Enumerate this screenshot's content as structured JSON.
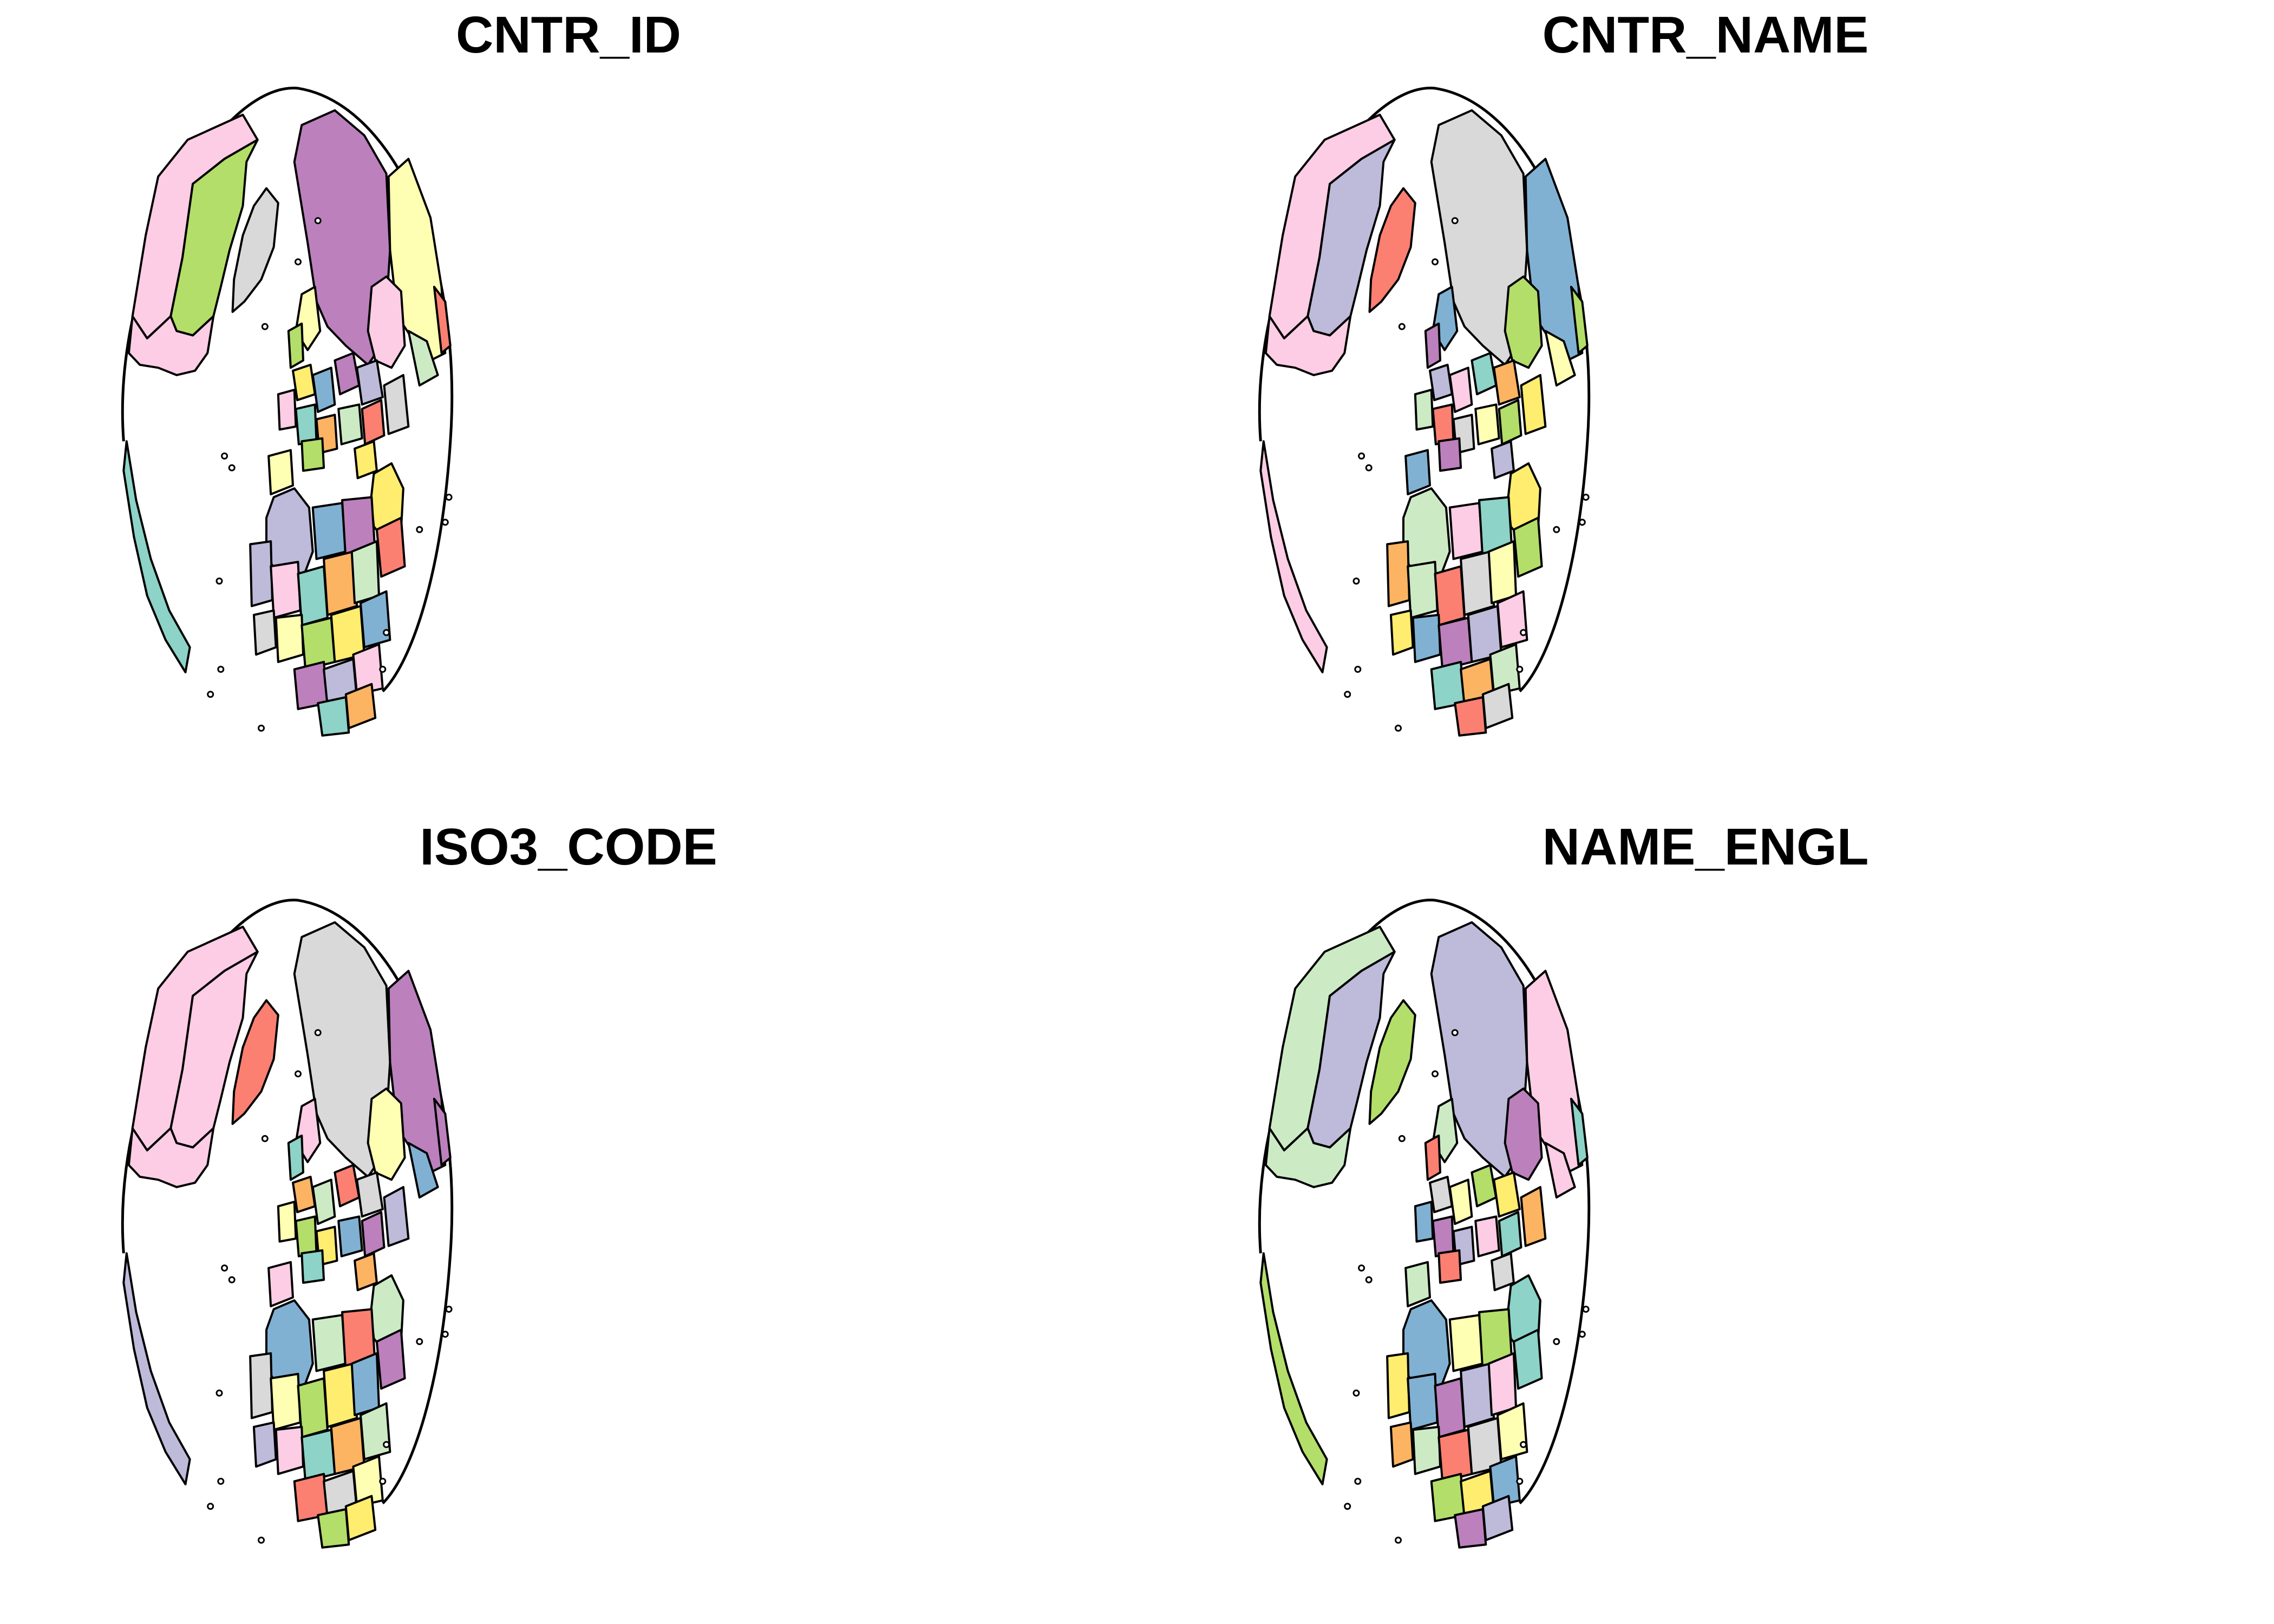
{
  "figure": {
    "panels": [
      {
        "title": "CNTR_ID"
      },
      {
        "title": "CNTR_NAME"
      },
      {
        "title": "ISO3_CODE"
      },
      {
        "title": "NAME_ENGL"
      }
    ]
  },
  "palette": [
    "#8dd3c7",
    "#ffffb3",
    "#bebada",
    "#fb8072",
    "#80b1d3",
    "#fdb462",
    "#b3de69",
    "#fccde5",
    "#d9d9d9",
    "#bc80bd",
    "#ccebc5",
    "#ffed6f"
  ],
  "outline_color": "#000000",
  "region_colors": [
    {
      "canada": "#b3de69",
      "usa": "#fccde5",
      "alaska": "#fccde5",
      "russia": "#bc80bd",
      "greenland": "#d9d9d9",
      "latin_america": "#8dd3c7",
      "north_africa": "#bebada",
      "arabia": "#ffed6f",
      "east_asia": "#ffffb3",
      "central_asia": "#fccde5"
    },
    {
      "canada": "#bebada",
      "usa": "#fccde5",
      "alaska": "#fccde5",
      "russia": "#d9d9d9",
      "greenland": "#fb8072",
      "latin_america": "#fccde5",
      "north_africa": "#ccebc5",
      "arabia": "#ffed6f",
      "east_asia": "#80b1d3",
      "central_asia": "#b3de69"
    },
    {
      "canada": "#fccde5",
      "usa": "#fccde5",
      "alaska": "#fccde5",
      "russia": "#d9d9d9",
      "greenland": "#fb8072",
      "latin_america": "#bebada",
      "north_africa": "#80b1d3",
      "arabia": "#ccebc5",
      "east_asia": "#bc80bd",
      "central_asia": "#ffffb3"
    },
    {
      "canada": "#bebada",
      "usa": "#ccebc5",
      "alaska": "#ccebc5",
      "russia": "#bebada",
      "greenland": "#b3de69",
      "latin_america": "#b3de69",
      "north_africa": "#80b1d3",
      "arabia": "#8dd3c7",
      "east_asia": "#fccde5",
      "central_asia": "#bc80bd"
    }
  ]
}
